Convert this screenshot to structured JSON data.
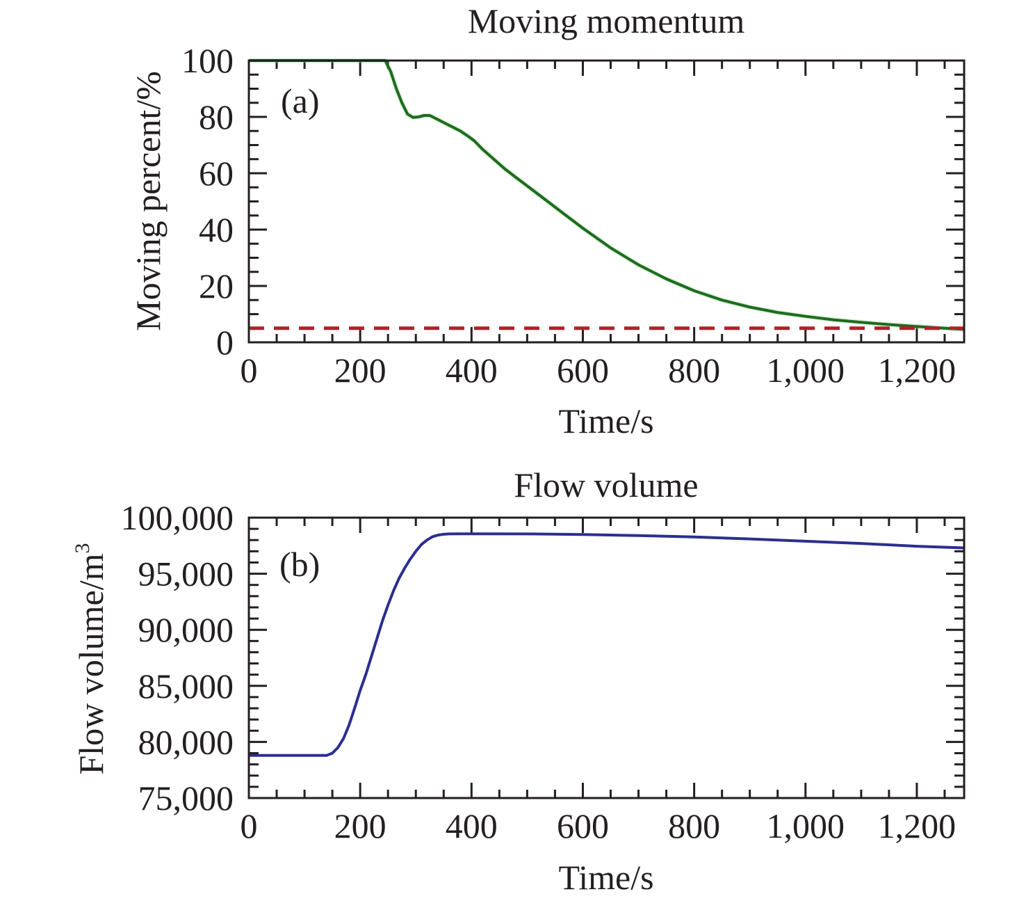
{
  "chart_data": [
    {
      "type": "line",
      "panel_label": "(a)",
      "title": "Moving momentum",
      "xlabel": "Time/s",
      "ylabel": "Moving percent/%",
      "xlim": [
        0,
        1285
      ],
      "ylim": [
        0,
        100
      ],
      "xticks": [
        0,
        200,
        400,
        600,
        800,
        1000,
        1200
      ],
      "xtick_labels": [
        "0",
        "200",
        "400",
        "600",
        "800",
        "1,000",
        "1,200"
      ],
      "xminor_step": 50,
      "yticks": [
        0,
        20,
        40,
        60,
        80,
        100
      ],
      "ytick_labels": [
        "0",
        "20",
        "40",
        "60",
        "80",
        "100"
      ],
      "yminor_step": 5,
      "grid": false,
      "series": [
        {
          "name": "moving percent",
          "color": "#1e6b1e",
          "style": "solid",
          "x": [
            0,
            100,
            200,
            245,
            255,
            265,
            275,
            285,
            295,
            305,
            315,
            325,
            335,
            350,
            365,
            380,
            395,
            405,
            420,
            440,
            460,
            480,
            500,
            530,
            560,
            600,
            650,
            700,
            750,
            800,
            850,
            900,
            950,
            1000,
            1050,
            1100,
            1150,
            1200,
            1250,
            1285
          ],
          "y": [
            100,
            100,
            100,
            100,
            96,
            90,
            85,
            81,
            79.8,
            80,
            80.5,
            80.5,
            79.5,
            78,
            76.5,
            75,
            73,
            71.5,
            68.5,
            65,
            61.5,
            58.5,
            55.5,
            51,
            46.5,
            40.5,
            33.5,
            27.5,
            22.5,
            18.3,
            15,
            12.5,
            10.6,
            9.2,
            8.0,
            7.1,
            6.3,
            5.6,
            5.0,
            4.6
          ]
        },
        {
          "name": "threshold",
          "color": "#b3202a",
          "style": "dashed",
          "x": [
            0,
            1285
          ],
          "y": [
            5,
            5
          ]
        }
      ]
    },
    {
      "type": "line",
      "panel_label": "(b)",
      "title": "Flow volume",
      "xlabel": "Time/s",
      "ylabel": "Flow volume/m",
      "ylabel_sup": "3",
      "xlim": [
        0,
        1285
      ],
      "ylim": [
        75000,
        100000
      ],
      "xticks": [
        0,
        200,
        400,
        600,
        800,
        1000,
        1200
      ],
      "xtick_labels": [
        "0",
        "200",
        "400",
        "600",
        "800",
        "1,000",
        "1,200"
      ],
      "xminor_step": 50,
      "yticks": [
        75000,
        80000,
        85000,
        90000,
        95000,
        100000
      ],
      "ytick_labels": [
        "75,000",
        "80,000",
        "85,000",
        "90,000",
        "95,000",
        "100,000"
      ],
      "yminor_step": 1000,
      "grid": false,
      "series": [
        {
          "name": "flow volume",
          "color": "#2a2f8f",
          "style": "solid",
          "x": [
            0,
            50,
            100,
            140,
            150,
            160,
            170,
            180,
            190,
            200,
            210,
            220,
            230,
            240,
            250,
            260,
            270,
            280,
            290,
            300,
            310,
            320,
            330,
            340,
            350,
            360,
            380,
            400,
            500,
            600,
            700,
            800,
            900,
            1000,
            1100,
            1200,
            1285
          ],
          "y": [
            78800,
            78800,
            78800,
            78800,
            79000,
            79500,
            80300,
            81500,
            83000,
            84600,
            86000,
            87600,
            89200,
            90800,
            92200,
            93500,
            94600,
            95500,
            96300,
            97000,
            97600,
            98000,
            98300,
            98450,
            98520,
            98550,
            98560,
            98560,
            98550,
            98500,
            98400,
            98280,
            98100,
            97900,
            97700,
            97450,
            97300
          ]
        }
      ]
    }
  ]
}
